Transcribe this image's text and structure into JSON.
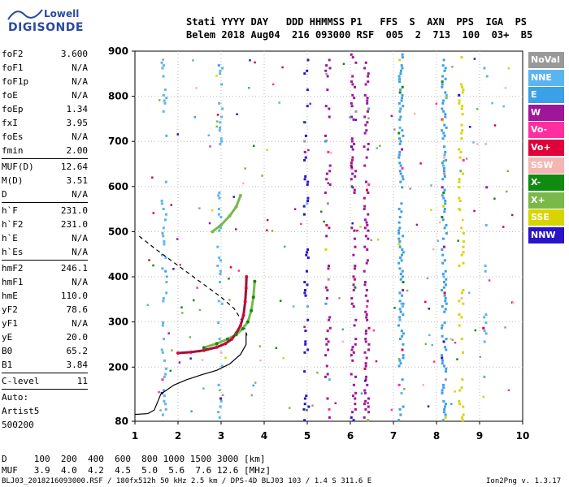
{
  "logo": {
    "line1": "Lowell",
    "line2": "DIGISONDE"
  },
  "header": {
    "line1": "Stati YYYY DAY   DDD HHMMSS P1   FFS  S  AXN  PPS  IGA  PS",
    "line2": "Belem 2018 Aug04  216 093000 RSF  005  2  713  100  03+  B5"
  },
  "params": [
    {
      "k": "foF2",
      "v": "3.600"
    },
    {
      "k": "foF1",
      "v": "N/A"
    },
    {
      "k": "foF1p",
      "v": "N/A"
    },
    {
      "k": "foE",
      "v": "N/A"
    },
    {
      "k": "foEp",
      "v": "1.34"
    },
    {
      "k": "fxI",
      "v": "3.95"
    },
    {
      "k": "foEs",
      "v": "N/A"
    },
    {
      "k": "fmin",
      "v": "2.00",
      "sep": true
    },
    {
      "k": "MUF(D)",
      "v": "12.64"
    },
    {
      "k": "M(D)",
      "v": "3.51"
    },
    {
      "k": "D",
      "v": "N/A",
      "sep": true
    },
    {
      "k": "h`F",
      "v": "231.0"
    },
    {
      "k": "h`F2",
      "v": "231.0"
    },
    {
      "k": "h`E",
      "v": "N/A"
    },
    {
      "k": "h`Es",
      "v": "N/A",
      "sep": true
    },
    {
      "k": "hmF2",
      "v": "246.1"
    },
    {
      "k": "hmF1",
      "v": "N/A"
    },
    {
      "k": "hmE",
      "v": "110.0"
    },
    {
      "k": "yF2",
      "v": "78.6"
    },
    {
      "k": "yF1",
      "v": "N/A"
    },
    {
      "k": "yE",
      "v": "20.0"
    },
    {
      "k": "B0",
      "v": "65.2"
    },
    {
      "k": "B1",
      "v": "3.84",
      "sep": true
    },
    {
      "k": "C-level",
      "v": "11",
      "sep": true
    },
    {
      "k": "Auto:",
      "v": ""
    },
    {
      "k": "Artist5",
      "v": ""
    },
    {
      "k": "500200",
      "v": ""
    }
  ],
  "legend": [
    {
      "label": "NoVal",
      "color": "#999999"
    },
    {
      "label": "NNE",
      "color": "#5ab4f0"
    },
    {
      "label": "E",
      "color": "#3aa0e8"
    },
    {
      "label": "W",
      "color": "#a0169a"
    },
    {
      "label": "Vo-",
      "color": "#ff2f9f"
    },
    {
      "label": "Vo+",
      "color": "#e0003a"
    },
    {
      "label": "SSW",
      "color": "#f5b5b0"
    },
    {
      "label": "X-",
      "color": "#118a11"
    },
    {
      "label": "X+",
      "color": "#7ab84a"
    },
    {
      "label": "SSE",
      "color": "#d8d400"
    },
    {
      "label": "NNW",
      "color": "#2a14c8"
    }
  ],
  "footer": {
    "line1": "D     100  200  400  600  800 1000 1500 3000 [km]",
    "line2": "MUF   3.9  4.0  4.2  4.5  5.0  5.6  7.6 12.6 [MHz]",
    "line3": "BLJ03_2018216093000.RSF / 180fx512h 50 kHz 2.5 km / DPS-4D BLJ03 103 / 1.4 S 311.6 E",
    "version": "Ion2Png v. 1.3.17"
  },
  "chart_data": {
    "type": "scatter",
    "xlim": [
      1,
      10
    ],
    "ylim": [
      80,
      900
    ],
    "xticks": [
      1,
      2,
      3,
      4,
      5,
      6,
      7,
      8,
      9,
      10
    ],
    "yticks": [
      80,
      200,
      300,
      400,
      500,
      600,
      700,
      800,
      900
    ],
    "grid": true,
    "xlabel": "",
    "ylabel": "",
    "trace_o": [
      [
        2.0,
        231
      ],
      [
        2.3,
        233
      ],
      [
        2.6,
        237
      ],
      [
        2.9,
        244
      ],
      [
        3.1,
        252
      ],
      [
        3.25,
        262
      ],
      [
        3.35,
        275
      ],
      [
        3.45,
        292
      ],
      [
        3.52,
        315
      ],
      [
        3.56,
        345
      ],
      [
        3.58,
        375
      ],
      [
        3.59,
        400
      ]
    ],
    "trace_x": [
      [
        2.6,
        243
      ],
      [
        2.9,
        252
      ],
      [
        3.15,
        262
      ],
      [
        3.35,
        272
      ],
      [
        3.5,
        285
      ],
      [
        3.62,
        300
      ],
      [
        3.7,
        325
      ],
      [
        3.75,
        355
      ],
      [
        3.78,
        390
      ]
    ],
    "trace_x_echo": [
      [
        2.8,
        500
      ],
      [
        3.0,
        515
      ],
      [
        3.2,
        535
      ],
      [
        3.35,
        555
      ],
      [
        3.45,
        580
      ]
    ],
    "profile_solid": [
      [
        1.0,
        95
      ],
      [
        1.3,
        97
      ],
      [
        1.45,
        105
      ],
      [
        1.6,
        140
      ],
      [
        1.9,
        160
      ],
      [
        2.2,
        172
      ],
      [
        2.55,
        183
      ],
      [
        2.9,
        193
      ],
      [
        3.2,
        207
      ],
      [
        3.45,
        228
      ],
      [
        3.58,
        250
      ],
      [
        3.58,
        275
      ]
    ],
    "profile_dashed": [
      [
        1.1,
        490
      ],
      [
        1.5,
        460
      ],
      [
        2.0,
        425
      ],
      [
        2.5,
        390
      ],
      [
        3.0,
        355
      ],
      [
        3.3,
        330
      ],
      [
        3.5,
        300
      ],
      [
        3.6,
        270
      ]
    ]
  }
}
